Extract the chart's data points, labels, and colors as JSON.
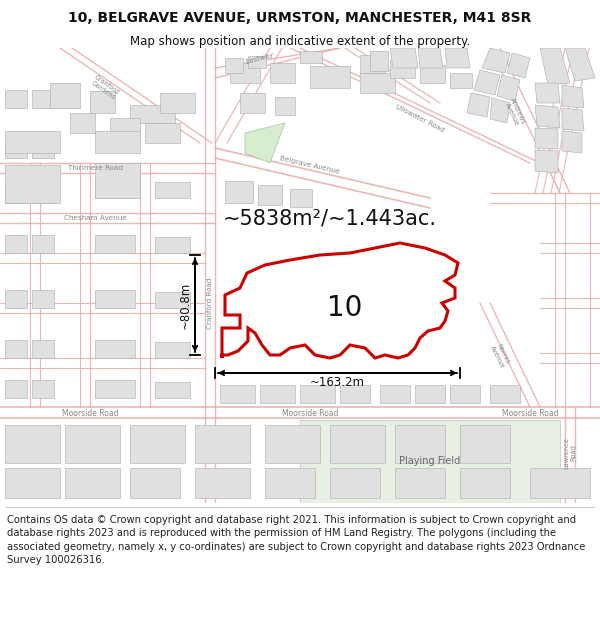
{
  "title_line1": "10, BELGRAVE AVENUE, URMSTON, MANCHESTER, M41 8SR",
  "title_line2": "Map shows position and indicative extent of the property.",
  "footer_text": "Contains OS data © Crown copyright and database right 2021. This information is subject to Crown copyright and database rights 2023 and is reproduced with the permission of HM Land Registry. The polygons (including the associated geometry, namely x, y co-ordinates) are subject to Crown copyright and database rights 2023 Ordnance Survey 100026316.",
  "area_label": "~5838m²/~1.443ac.",
  "property_number": "10",
  "dim_width": "~163.2m",
  "dim_height": "~80.8m",
  "bg_color": "#ffffff",
  "map_bg": "#ffffff",
  "road_color": "#e8aaaa",
  "road_color_dark": "#d08080",
  "building_fill": "#e0e0e0",
  "building_edge": "#aaaaaa",
  "property_fill": "#ffffff",
  "property_edge": "#cc0000",
  "dim_color": "#111111",
  "area_label_fontsize": 15,
  "property_number_fontsize": 20,
  "green_fill": "#d8ecd0",
  "green_edge": "#aaccaa",
  "title_fontsize": 10,
  "subtitle_fontsize": 8.5,
  "footer_fontsize": 7.2,
  "label_color": "#888888",
  "label_fontsize": 5.5
}
